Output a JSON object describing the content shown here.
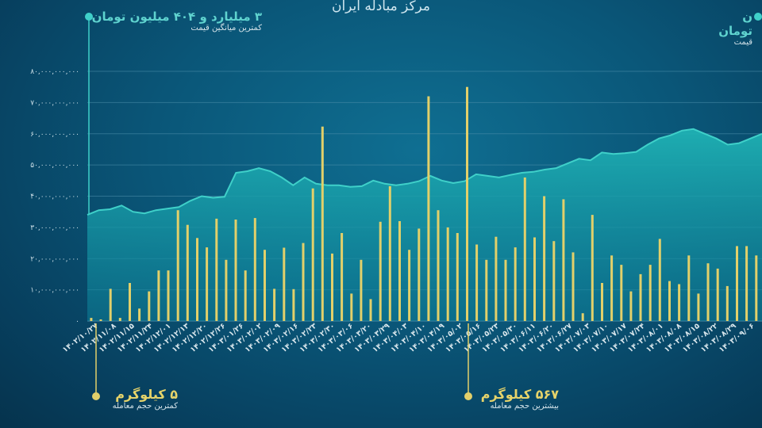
{
  "title": "مرکز مبادله ایران",
  "annotations": {
    "min_price_value": "۳ میلیارد و ۴۰۴ میلیون تومان",
    "min_price_caption": "کمترین میانگین قیمت",
    "max_price_value_partial": "ن تومان",
    "max_price_caption_partial": "قیمت",
    "min_volume_value": "۵ کیلوگرم",
    "min_volume_caption": "کمترین حجم معامله",
    "max_volume_value": "۵۶۷ کیلوگرم",
    "max_volume_caption": "بیشترین حجم معامله"
  },
  "colors": {
    "price_area": "#1aa3a8",
    "price_line": "#3fd0c9",
    "volume_bar": "#e2d06a",
    "grid": "#4f8fac"
  },
  "chart_data": {
    "type": "bar",
    "title": "مرکز مبادله ایران",
    "ylim": [
      0,
      80000000000
    ],
    "yticks": [
      "۰",
      "۱۰,۰۰۰,۰۰۰,۰۰۰",
      "۲۰,۰۰۰,۰۰۰,۰۰۰",
      "۳۰,۰۰۰,۰۰۰,۰۰۰",
      "۴۰,۰۰۰,۰۰۰,۰۰۰",
      "۵۰,۰۰۰,۰۰۰,۰۰۰",
      "۶۰,۰۰۰,۰۰۰,۰۰۰",
      "۷۰,۰۰۰,۰۰۰,۰۰۰",
      "۸۰,۰۰۰,۰۰۰,۰۰۰"
    ],
    "x_tick_labels": [
      "۱۴۰۲/۱۰/۲۷",
      "۱۴۰۲/۱۱/۰۸",
      "۱۴۰۲/۱۱/۱۵",
      "۱۴۰۲/۱۱/۲۴",
      "۱۴۰۲/۱۲/۰۱",
      "۱۴۰۲/۱۲/۱۳",
      "۱۴۰۲/۱۲/۲۰",
      "۱۴۰۲/۱۲/۲۶",
      "۱۴۰۳/۰۱/۲۶",
      "۱۴۰۳/۰۲/۰۲",
      "۱۴۰۳/۰۲/۰۹",
      "۱۴۰۳/۰۲/۱۶",
      "۱۴۰۳/۰۲/۲۳",
      "۱۴۰۳/۰۲/۳۰",
      "۱۴۰۳/۰۳/۰۶",
      "۱۴۰۳/۰۳/۲۰",
      "۱۴۰۳/۰۳/۲۹",
      "۱۴۰۳/۰۴/۰۳",
      "۱۴۰۳/۰۴/۱۰",
      "۱۴۰۳/۰۴/۱۹",
      "۱۴۰۳/۰۵/۰۲",
      "۱۴۰۳/۰۵/۱۶",
      "۱۴۰۳/۰۵/۲۳",
      "۱۴۰۳/۰۵/۳۰",
      "۱۴۰۳/۰۶/۱۱",
      "۱۴۰۳/۰۶/۲۰",
      "۱۴۰۳/۰۶/۲۷",
      "۱۴۰۳/۰۷/۰۳",
      "۱۴۰۳/۰۷/۱۰",
      "۱۴۰۳/۰۷/۱۷",
      "۱۴۰۳/۰۷/۲۴",
      "۱۴۰۳/۰۸/۰۱",
      "۱۴۰۳/۰۸/۰۸",
      "۱۴۰۳/۰۸/۱۵",
      "۱۴۰۳/۰۸/۲۲",
      "۱۴۰۳/۰۸/۲۹",
      "۱۴۰۳/۰۹/۰۶"
    ],
    "series": [
      {
        "type": "area",
        "values": [
          34000000000,
          35500000000,
          35800000000,
          37000000000,
          35000000000,
          34500000000,
          35500000000,
          36000000000,
          36500000000,
          38500000000,
          40000000000,
          39500000000,
          39800000000,
          47500000000,
          48000000000,
          49000000000,
          48000000000,
          46000000000,
          43500000000,
          46000000000,
          44000000000,
          43500000000,
          43500000000,
          43000000000,
          43200000000,
          45000000000,
          44000000000,
          43500000000,
          44000000000,
          44800000000,
          46500000000,
          45000000000,
          44200000000,
          44800000000,
          47000000000,
          46500000000,
          46000000000,
          46800000000,
          47500000000,
          47800000000,
          48500000000,
          49000000000,
          50500000000,
          52000000000,
          51500000000,
          54000000000,
          53500000000,
          53800000000,
          54200000000,
          56500000000,
          58500000000,
          59500000000,
          61000000000,
          61500000000,
          60000000000,
          58500000000,
          56500000000,
          57000000000,
          58500000000,
          60000000000
        ]
      },
      {
        "type": "bar",
        "values": [
          1000000000,
          500000000,
          10300000000,
          1000000000,
          12200000000,
          4000000000,
          9500000000,
          16200000000,
          16200000000,
          35500000000,
          30800000000,
          26600000000,
          23600000000,
          32800000000,
          19600000000,
          32500000000,
          16200000000,
          33000000000,
          22800000000,
          10300000000,
          23500000000,
          10200000000,
          25000000000,
          42500000000,
          62300000000,
          21600000000,
          28200000000,
          8800000000,
          19600000000,
          7000000000,
          31800000000,
          43200000000,
          32000000000,
          22800000000,
          29600000000,
          72000000000,
          35500000000,
          30000000000,
          28200000000,
          75000000000,
          24500000000,
          19600000000,
          27000000000,
          19600000000,
          23600000000,
          46000000000,
          26800000000,
          40000000000,
          25600000000,
          39000000000,
          22000000000,
          2500000000,
          34000000000,
          12200000000,
          21000000000,
          18000000000,
          9500000000,
          15000000000,
          18000000000,
          26300000000,
          12800000000,
          11800000000,
          21000000000,
          8800000000,
          18500000000,
          16800000000,
          11200000000,
          24000000000,
          24000000000,
          21000000000
        ]
      }
    ],
    "grid": true
  }
}
